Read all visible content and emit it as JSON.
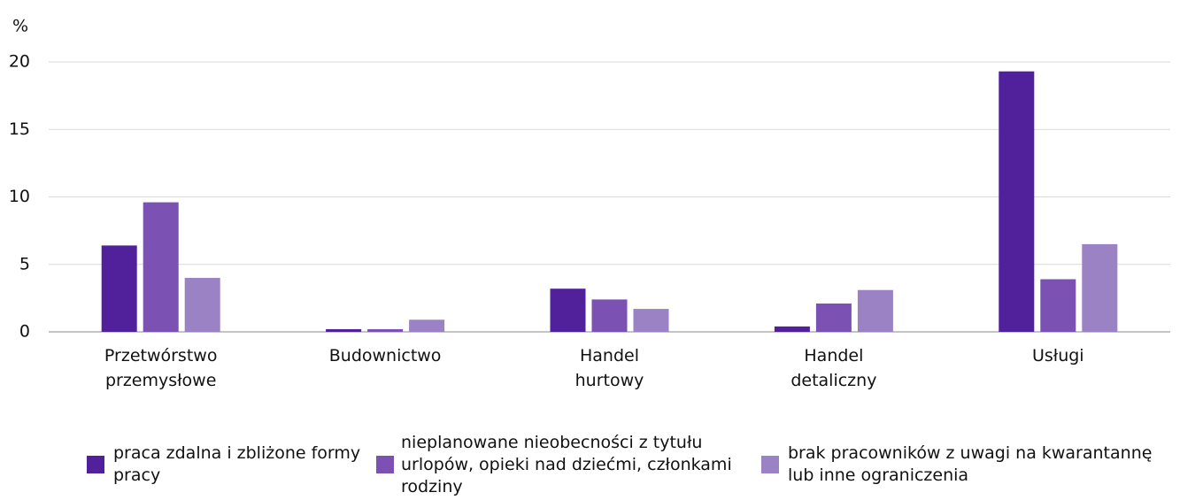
{
  "chart_data": {
    "type": "bar",
    "y_label": "%",
    "categories": [
      "Przetwórstwo przemysłowe",
      "Budownictwo",
      "Handel hurtowy",
      "Handel detaliczny",
      "Usługi"
    ],
    "series": [
      {
        "name": "praca zdalna i zbliżone formy pracy",
        "color": "#50219a",
        "values": [
          6.4,
          0.2,
          3.2,
          0.4,
          19.3
        ]
      },
      {
        "name": "nieplanowane nieobecności z tytułu urlopów, opieki nad dziećmi, członkami rodziny",
        "color": "#7b52b3",
        "values": [
          9.6,
          0.2,
          2.4,
          2.1,
          3.9
        ]
      },
      {
        "name": "brak pracowników z uwagi na kwarantannę lub inne ograniczenia",
        "color": "#9b82c5",
        "values": [
          4.0,
          0.9,
          1.7,
          3.1,
          6.5
        ]
      }
    ],
    "ylim": [
      0,
      20
    ],
    "yticks": [
      0,
      5,
      10,
      15,
      20
    ],
    "grid": true,
    "legend": "bottom"
  }
}
